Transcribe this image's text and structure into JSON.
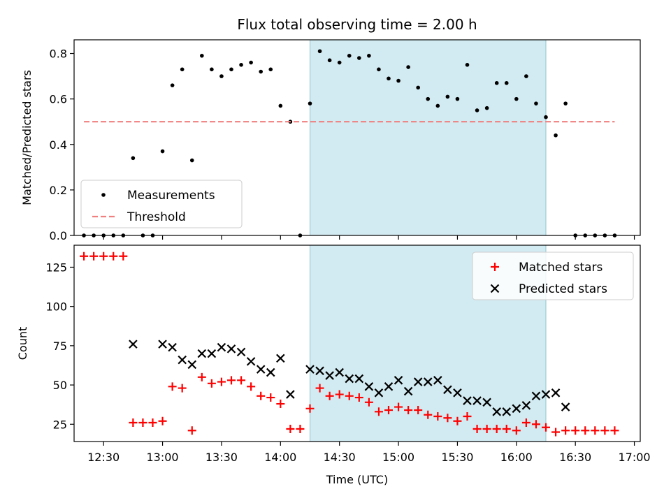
{
  "figure": {
    "title": "Flux total observing time = 2.00 h",
    "shaded_span": [
      "14:15",
      "16:15"
    ],
    "shade_color": "#add8e6"
  },
  "chart_data": [
    {
      "type": "scatter",
      "ylabel": "Matched/Predicted stars",
      "xlim": [
        "12:15",
        "17:03"
      ],
      "ylim": [
        0,
        0.86
      ],
      "yticks": [
        0.0,
        0.2,
        0.4,
        0.6,
        0.8
      ],
      "ytick_labels": [
        "0.0",
        "0.2",
        "0.4",
        "0.6",
        "0.8"
      ],
      "legend_position": "lower-left",
      "series": [
        {
          "name": "Measurements",
          "marker": "dot",
          "color": "#000000",
          "points": [
            [
              "12:20",
              0.0
            ],
            [
              "12:25",
              0.0
            ],
            [
              "12:30",
              0.0
            ],
            [
              "12:35",
              0.0
            ],
            [
              "12:40",
              0.0
            ],
            [
              "12:45",
              0.34
            ],
            [
              "12:50",
              0.0
            ],
            [
              "12:55",
              0.0
            ],
            [
              "13:00",
              0.37
            ],
            [
              "13:05",
              0.66
            ],
            [
              "13:10",
              0.73
            ],
            [
              "13:15",
              0.33
            ],
            [
              "13:20",
              0.79
            ],
            [
              "13:25",
              0.73
            ],
            [
              "13:30",
              0.7
            ],
            [
              "13:35",
              0.73
            ],
            [
              "13:40",
              0.75
            ],
            [
              "13:45",
              0.76
            ],
            [
              "13:50",
              0.72
            ],
            [
              "13:55",
              0.73
            ],
            [
              "14:00",
              0.57
            ],
            [
              "14:05",
              0.5
            ],
            [
              "14:10",
              0.0
            ],
            [
              "14:15",
              0.58
            ],
            [
              "14:20",
              0.81
            ],
            [
              "14:25",
              0.77
            ],
            [
              "14:30",
              0.76
            ],
            [
              "14:35",
              0.79
            ],
            [
              "14:40",
              0.78
            ],
            [
              "14:45",
              0.79
            ],
            [
              "14:50",
              0.73
            ],
            [
              "14:55",
              0.69
            ],
            [
              "15:00",
              0.68
            ],
            [
              "15:05",
              0.74
            ],
            [
              "15:10",
              0.65
            ],
            [
              "15:15",
              0.6
            ],
            [
              "15:20",
              0.57
            ],
            [
              "15:25",
              0.61
            ],
            [
              "15:30",
              0.6
            ],
            [
              "15:35",
              0.75
            ],
            [
              "15:40",
              0.55
            ],
            [
              "15:45",
              0.56
            ],
            [
              "15:50",
              0.67
            ],
            [
              "15:55",
              0.67
            ],
            [
              "16:00",
              0.6
            ],
            [
              "16:05",
              0.7
            ],
            [
              "16:10",
              0.58
            ],
            [
              "16:15",
              0.52
            ],
            [
              "16:20",
              0.44
            ],
            [
              "16:25",
              0.58
            ],
            [
              "16:30",
              0.0
            ],
            [
              "16:35",
              0.0
            ],
            [
              "16:40",
              0.0
            ],
            [
              "16:45",
              0.0
            ],
            [
              "16:50",
              0.0
            ]
          ]
        },
        {
          "name": "Threshold",
          "marker": "dashed-line",
          "color": "#f08080",
          "points": [
            [
              "12:20",
              0.5
            ],
            [
              "16:50",
              0.5
            ]
          ]
        }
      ]
    },
    {
      "type": "scatter",
      "xlabel": "Time (UTC)",
      "ylabel": "Count",
      "xlim": [
        "12:15",
        "17:03"
      ],
      "ylim": [
        14,
        139
      ],
      "yticks": [
        25,
        50,
        75,
        100,
        125
      ],
      "ytick_labels": [
        "25",
        "50",
        "75",
        "100",
        "125"
      ],
      "xticks": [
        "12:30",
        "13:00",
        "13:30",
        "14:00",
        "14:30",
        "15:00",
        "15:30",
        "16:00",
        "16:30",
        "17:00"
      ],
      "xtick_labels": [
        "12:30",
        "13:00",
        "13:30",
        "14:00",
        "14:30",
        "15:00",
        "15:30",
        "16:00",
        "16:30",
        "17:00"
      ],
      "legend_position": "top-right",
      "series": [
        {
          "name": "Matched stars",
          "marker": "plus",
          "color": "#ff0000",
          "points": [
            [
              "12:20",
              132
            ],
            [
              "12:25",
              132
            ],
            [
              "12:30",
              132
            ],
            [
              "12:35",
              132
            ],
            [
              "12:40",
              132
            ],
            [
              "12:45",
              26
            ],
            [
              "12:50",
              26
            ],
            [
              "12:55",
              26
            ],
            [
              "13:00",
              27
            ],
            [
              "13:05",
              49
            ],
            [
              "13:10",
              48
            ],
            [
              "13:15",
              21
            ],
            [
              "13:20",
              55
            ],
            [
              "13:25",
              51
            ],
            [
              "13:30",
              52
            ],
            [
              "13:35",
              53
            ],
            [
              "13:40",
              53
            ],
            [
              "13:45",
              49
            ],
            [
              "13:50",
              43
            ],
            [
              "13:55",
              42
            ],
            [
              "14:00",
              38
            ],
            [
              "14:05",
              22
            ],
            [
              "14:10",
              22
            ],
            [
              "14:15",
              35
            ],
            [
              "14:20",
              48
            ],
            [
              "14:25",
              43
            ],
            [
              "14:30",
              44
            ],
            [
              "14:35",
              43
            ],
            [
              "14:40",
              42
            ],
            [
              "14:45",
              39
            ],
            [
              "14:50",
              33
            ],
            [
              "14:55",
              34
            ],
            [
              "15:00",
              36
            ],
            [
              "15:05",
              34
            ],
            [
              "15:10",
              34
            ],
            [
              "15:15",
              31
            ],
            [
              "15:20",
              30
            ],
            [
              "15:25",
              29
            ],
            [
              "15:30",
              27
            ],
            [
              "15:35",
              30
            ],
            [
              "15:40",
              22
            ],
            [
              "15:45",
              22
            ],
            [
              "15:50",
              22
            ],
            [
              "15:55",
              22
            ],
            [
              "16:00",
              21
            ],
            [
              "16:05",
              26
            ],
            [
              "16:10",
              25
            ],
            [
              "16:15",
              23
            ],
            [
              "16:20",
              20
            ],
            [
              "16:25",
              21
            ],
            [
              "16:30",
              21
            ],
            [
              "16:35",
              21
            ],
            [
              "16:40",
              21
            ],
            [
              "16:45",
              21
            ],
            [
              "16:50",
              21
            ]
          ]
        },
        {
          "name": "Predicted stars",
          "marker": "cross",
          "color": "#000000",
          "points": [
            [
              "12:45",
              76
            ],
            [
              "13:00",
              76
            ],
            [
              "13:05",
              74
            ],
            [
              "13:10",
              66
            ],
            [
              "13:15",
              63
            ],
            [
              "13:20",
              70
            ],
            [
              "13:25",
              70
            ],
            [
              "13:30",
              74
            ],
            [
              "13:35",
              73
            ],
            [
              "13:40",
              71
            ],
            [
              "13:45",
              65
            ],
            [
              "13:50",
              60
            ],
            [
              "13:55",
              58
            ],
            [
              "14:00",
              67
            ],
            [
              "14:05",
              44
            ],
            [
              "14:15",
              60
            ],
            [
              "14:20",
              59
            ],
            [
              "14:25",
              56
            ],
            [
              "14:30",
              58
            ],
            [
              "14:35",
              54
            ],
            [
              "14:40",
              54
            ],
            [
              "14:45",
              49
            ],
            [
              "14:50",
              45
            ],
            [
              "14:55",
              49
            ],
            [
              "15:00",
              53
            ],
            [
              "15:05",
              46
            ],
            [
              "15:10",
              52
            ],
            [
              "15:15",
              52
            ],
            [
              "15:20",
              53
            ],
            [
              "15:25",
              47
            ],
            [
              "15:30",
              45
            ],
            [
              "15:35",
              40
            ],
            [
              "15:40",
              40
            ],
            [
              "15:45",
              39
            ],
            [
              "15:50",
              33
            ],
            [
              "15:55",
              33
            ],
            [
              "16:00",
              35
            ],
            [
              "16:05",
              37
            ],
            [
              "16:10",
              43
            ],
            [
              "16:15",
              44
            ],
            [
              "16:20",
              45
            ],
            [
              "16:25",
              36
            ]
          ]
        }
      ]
    }
  ]
}
